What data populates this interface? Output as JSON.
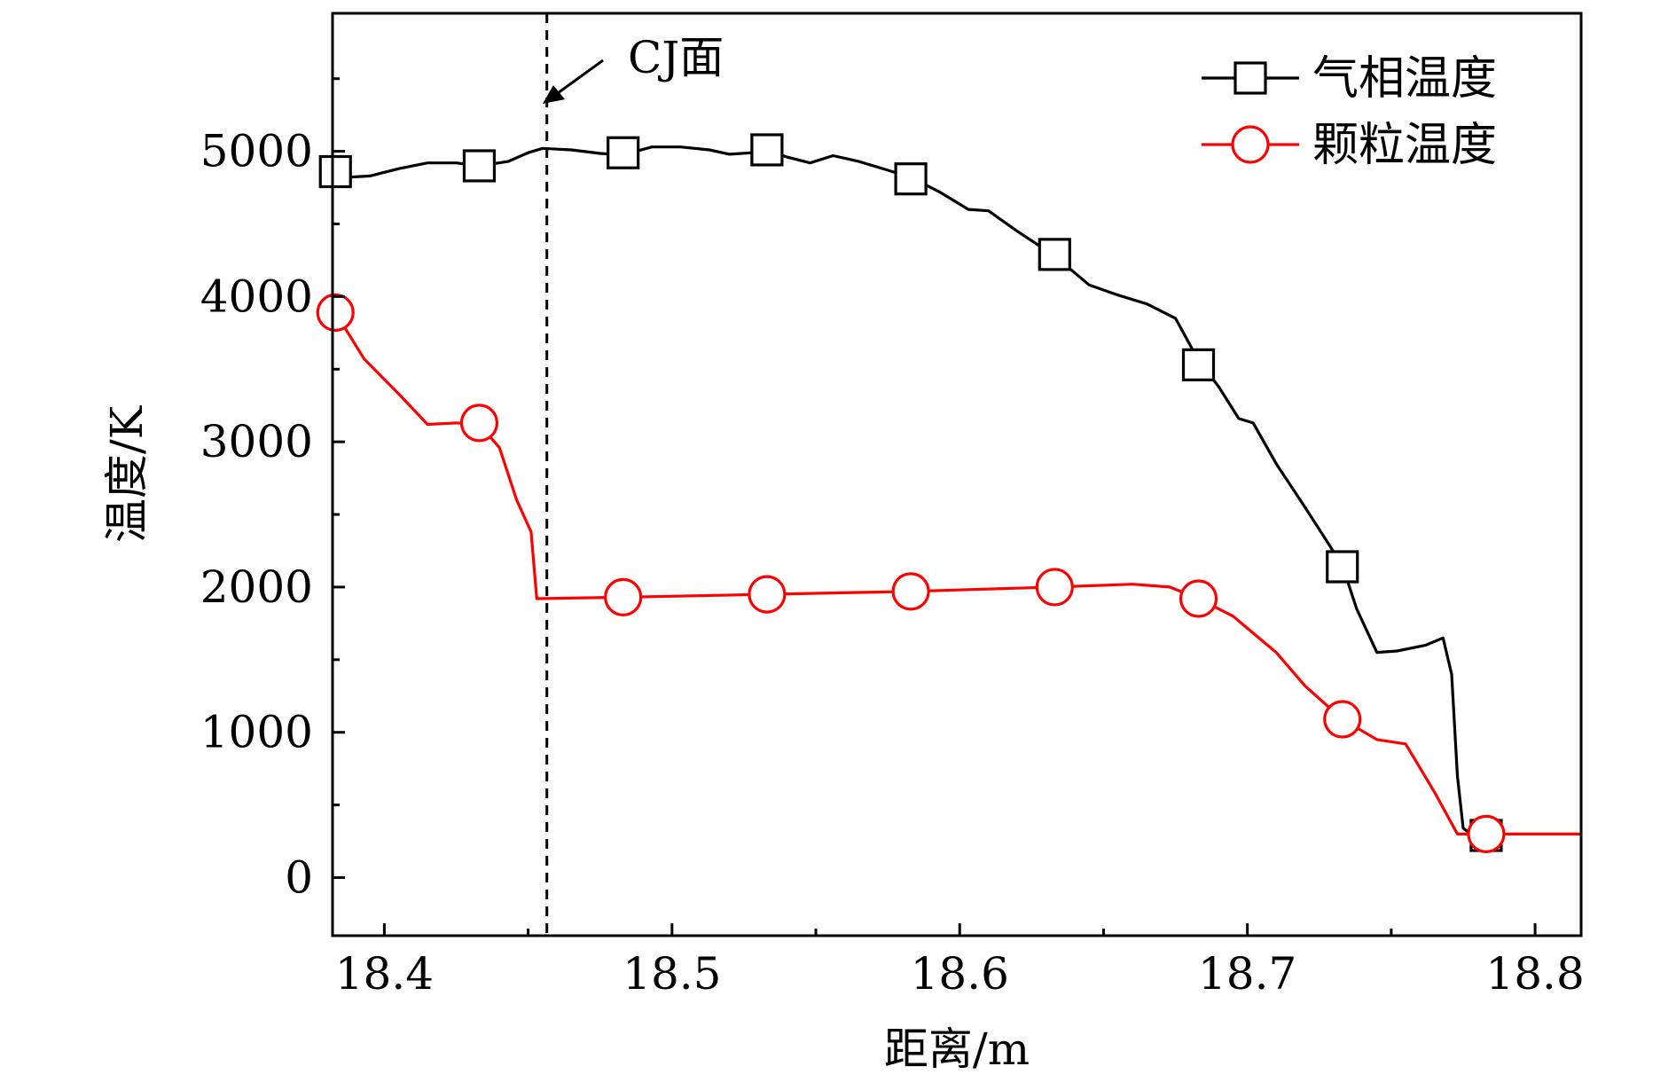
{
  "chart_data": {
    "type": "line",
    "xlabel": "距离/m",
    "ylabel": "温度/K",
    "xlim": [
      18.382,
      18.816
    ],
    "ylim": [
      -400,
      5950
    ],
    "x_ticks": [
      {
        "value": 18.4,
        "label": "18.4"
      },
      {
        "value": 18.5,
        "label": "18.5"
      },
      {
        "value": 18.6,
        "label": "18.6"
      },
      {
        "value": 18.7,
        "label": "18.7"
      },
      {
        "value": 18.8,
        "label": "18.8"
      }
    ],
    "x_minor_ticks": [
      18.45,
      18.55,
      18.65,
      18.75
    ],
    "y_ticks": [
      {
        "value": 0,
        "label": "0"
      },
      {
        "value": 1000,
        "label": "1000"
      },
      {
        "value": 2000,
        "label": "2000"
      },
      {
        "value": 3000,
        "label": "3000"
      },
      {
        "value": 4000,
        "label": "4000"
      },
      {
        "value": 5000,
        "label": "5000"
      }
    ],
    "y_minor_ticks": [
      500,
      1500,
      2500,
      3500,
      4500,
      5500
    ],
    "annotation": {
      "text": "CJ面",
      "x": 18.4565
    },
    "legend": {
      "placement": "top-right"
    },
    "series": [
      {
        "name": "气相温度",
        "color": "#000000",
        "marker": "square",
        "line": [
          [
            18.383,
            4860
          ],
          [
            18.386,
            4820
          ],
          [
            18.395,
            4830
          ],
          [
            18.405,
            4880
          ],
          [
            18.415,
            4920
          ],
          [
            18.425,
            4920
          ],
          [
            18.433,
            4900
          ],
          [
            18.443,
            4930
          ],
          [
            18.45,
            4990
          ],
          [
            18.455,
            5020
          ],
          [
            18.465,
            5010
          ],
          [
            18.475,
            4985
          ],
          [
            18.483,
            4975
          ],
          [
            18.493,
            5030
          ],
          [
            18.503,
            5030
          ],
          [
            18.513,
            5010
          ],
          [
            18.52,
            4980
          ],
          [
            18.528,
            4990
          ],
          [
            18.533,
            5010
          ],
          [
            18.54,
            4960
          ],
          [
            18.548,
            4920
          ],
          [
            18.556,
            4970
          ],
          [
            18.565,
            4930
          ],
          [
            18.575,
            4870
          ],
          [
            18.583,
            4820
          ],
          [
            18.593,
            4720
          ],
          [
            18.603,
            4600
          ],
          [
            18.61,
            4590
          ],
          [
            18.62,
            4450
          ],
          [
            18.633,
            4280
          ],
          [
            18.645,
            4080
          ],
          [
            18.655,
            4010
          ],
          [
            18.665,
            3950
          ],
          [
            18.675,
            3850
          ],
          [
            18.683,
            3560
          ],
          [
            18.69,
            3380
          ],
          [
            18.697,
            3160
          ],
          [
            18.702,
            3130
          ],
          [
            18.71,
            2850
          ],
          [
            18.72,
            2550
          ],
          [
            18.733,
            2150
          ],
          [
            18.738,
            1850
          ],
          [
            18.745,
            1550
          ],
          [
            18.752,
            1560
          ],
          [
            18.762,
            1600
          ],
          [
            18.768,
            1650
          ],
          [
            18.771,
            1400
          ],
          [
            18.773,
            700
          ],
          [
            18.775,
            340
          ],
          [
            18.777,
            310
          ],
          [
            18.783,
            300
          ]
        ],
        "markers": [
          [
            18.383,
            4860
          ],
          [
            18.433,
            4900
          ],
          [
            18.483,
            4990
          ],
          [
            18.533,
            5010
          ],
          [
            18.583,
            4810
          ],
          [
            18.633,
            4290
          ],
          [
            18.683,
            3530
          ],
          [
            18.733,
            2140
          ],
          [
            18.783,
            290
          ]
        ]
      },
      {
        "name": "颗粒温度",
        "color": "#ff0000",
        "marker": "circle",
        "line": [
          [
            18.383,
            3890
          ],
          [
            18.393,
            3570
          ],
          [
            18.405,
            3330
          ],
          [
            18.415,
            3120
          ],
          [
            18.425,
            3130
          ],
          [
            18.433,
            3120
          ],
          [
            18.44,
            2960
          ],
          [
            18.446,
            2600
          ],
          [
            18.451,
            2380
          ],
          [
            18.453,
            1920
          ],
          [
            18.483,
            1930
          ],
          [
            18.533,
            1950
          ],
          [
            18.583,
            1970
          ],
          [
            18.633,
            2000
          ],
          [
            18.66,
            2020
          ],
          [
            18.673,
            2000
          ],
          [
            18.683,
            1920
          ],
          [
            18.695,
            1800
          ],
          [
            18.71,
            1550
          ],
          [
            18.72,
            1320
          ],
          [
            18.733,
            1090
          ],
          [
            18.745,
            950
          ],
          [
            18.755,
            920
          ],
          [
            18.765,
            590
          ],
          [
            18.773,
            300
          ],
          [
            18.816,
            300
          ]
        ],
        "markers": [
          [
            18.383,
            3890
          ],
          [
            18.433,
            3130
          ],
          [
            18.483,
            1930
          ],
          [
            18.533,
            1950
          ],
          [
            18.583,
            1970
          ],
          [
            18.633,
            2000
          ],
          [
            18.683,
            1920
          ],
          [
            18.733,
            1090
          ],
          [
            18.783,
            300
          ]
        ]
      }
    ]
  }
}
